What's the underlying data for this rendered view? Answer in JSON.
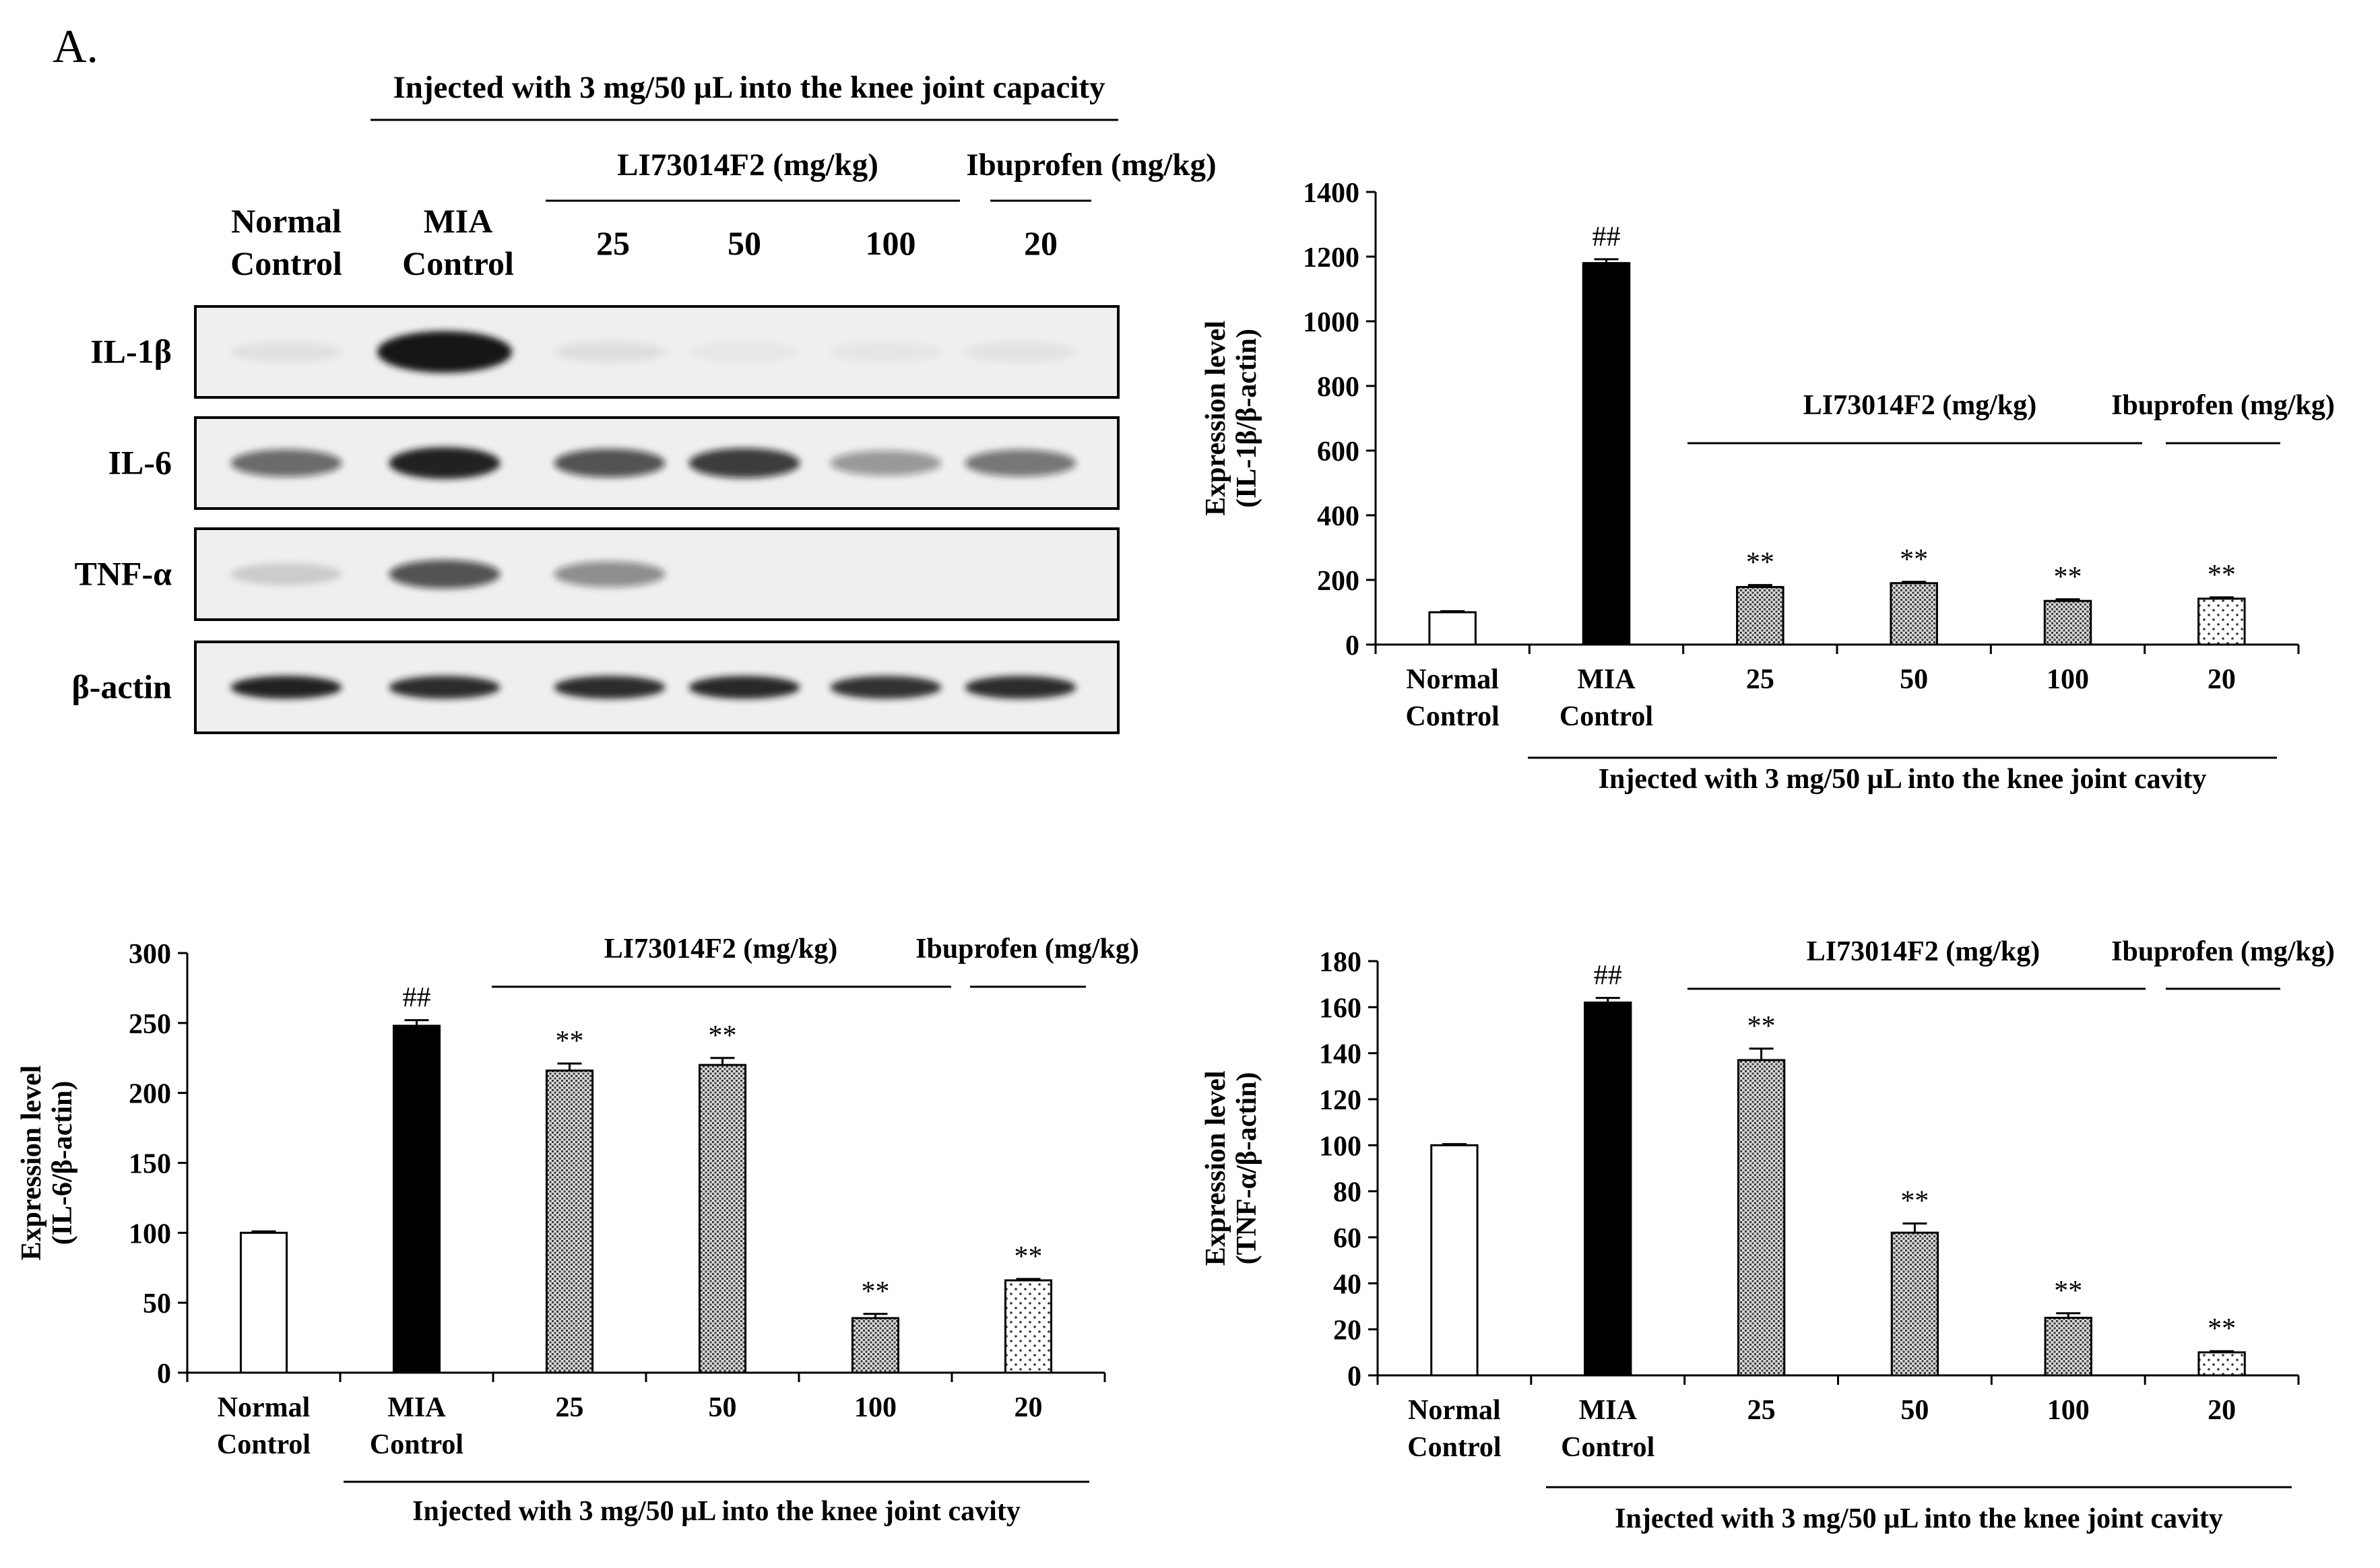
{
  "figure": {
    "panel_label": "A.",
    "treatment_groups": [
      "Normal Control",
      "MIA Control",
      "25",
      "50",
      "100",
      "20"
    ],
    "colors": {
      "normal": "#ffffff",
      "mia": "#000000",
      "li_pattern": "#8c8c8c",
      "ibu_pattern": "#ffffff",
      "blot_bg": "#efefef",
      "band": "#141414"
    }
  },
  "western_blot": {
    "header": "Injected with 3 mg/50 µL into the knee joint capacity",
    "li_label": "LI73014F2 (mg/kg)",
    "ibu_label": "Ibuprofen (mg/kg)",
    "lanes": [
      [
        "Normal",
        "Control"
      ],
      [
        "MIA",
        "Control"
      ],
      [
        "25"
      ],
      [
        "50"
      ],
      [
        "100"
      ],
      [
        "20"
      ]
    ],
    "rows": [
      {
        "label": "IL-1β",
        "intensities": [
          0.06,
          1.0,
          0.07,
          0.03,
          0.04,
          0.05
        ]
      },
      {
        "label": "IL-6",
        "intensities": [
          0.6,
          0.95,
          0.7,
          0.8,
          0.4,
          0.55
        ]
      },
      {
        "label": "TNF-α",
        "intensities": [
          0.15,
          0.7,
          0.45,
          0.0,
          0.0,
          0.0
        ]
      },
      {
        "label": "β-actin",
        "intensities": [
          0.95,
          0.9,
          0.9,
          0.92,
          0.88,
          0.9
        ]
      }
    ]
  },
  "chart_data": [
    {
      "type": "bar",
      "title": "",
      "ylabel": [
        "Expression level",
        "(IL-1β/β-actin)"
      ],
      "xlabel": "Injected with 3 mg/50 µL into the knee joint cavity",
      "ylim": [
        0,
        1400
      ],
      "yticks": [
        0,
        200,
        400,
        600,
        800,
        1000,
        1200,
        1400
      ],
      "categories": [
        [
          "Normal",
          "Control"
        ],
        [
          "MIA",
          "Control"
        ],
        [
          "25"
        ],
        [
          "50"
        ],
        [
          "100"
        ],
        [
          "20"
        ]
      ],
      "values": [
        100,
        1180,
        178,
        190,
        135,
        142
      ],
      "errors": [
        3,
        12,
        6,
        4,
        5,
        4
      ],
      "fills": [
        "white",
        "black",
        "dots",
        "dots",
        "dots",
        "sparse"
      ],
      "annotations": [
        "",
        "##",
        "**",
        "**",
        "**",
        "**"
      ],
      "group_labels": {
        "li": "LI73014F2 (mg/kg)",
        "ibu": "Ibuprofen (mg/kg)"
      }
    },
    {
      "type": "bar",
      "title": "",
      "ylabel": [
        "Expression level",
        "(IL-6/β-actin)"
      ],
      "xlabel": "Injected with 3 mg/50 µL into the knee joint cavity",
      "ylim": [
        0,
        300
      ],
      "yticks": [
        0,
        50,
        100,
        150,
        200,
        250,
        300
      ],
      "categories": [
        [
          "Normal",
          "Control"
        ],
        [
          "MIA",
          "Control"
        ],
        [
          "25"
        ],
        [
          "50"
        ],
        [
          "100"
        ],
        [
          "20"
        ]
      ],
      "values": [
        100,
        248,
        216,
        220,
        39,
        66
      ],
      "errors": [
        1,
        4,
        5,
        5,
        3,
        1
      ],
      "fills": [
        "white",
        "black",
        "dots",
        "dots",
        "dots",
        "sparse"
      ],
      "annotations": [
        "",
        "##",
        "**",
        "**",
        "**",
        "**"
      ],
      "group_labels": {
        "li": "LI73014F2 (mg/kg)",
        "ibu": "Ibuprofen (mg/kg)"
      }
    },
    {
      "type": "bar",
      "title": "",
      "ylabel": [
        "Expression level",
        "(TNF-α/β-actin)"
      ],
      "xlabel": "Injected with 3 mg/50 µL into the knee joint cavity",
      "ylim": [
        0,
        180
      ],
      "yticks": [
        0,
        20,
        40,
        60,
        80,
        100,
        120,
        140,
        160,
        180
      ],
      "categories": [
        [
          "Normal",
          "Control"
        ],
        [
          "MIA",
          "Control"
        ],
        [
          "25"
        ],
        [
          "50"
        ],
        [
          "100"
        ],
        [
          "20"
        ]
      ],
      "values": [
        100,
        162,
        137,
        62,
        25,
        10
      ],
      "errors": [
        0.5,
        2,
        5,
        4,
        2,
        0.5
      ],
      "fills": [
        "white",
        "black",
        "dots",
        "dots",
        "dots",
        "sparse"
      ],
      "annotations": [
        "",
        "##",
        "**",
        "**",
        "**",
        "**"
      ],
      "group_labels": {
        "li": "LI73014F2 (mg/kg)",
        "ibu": "Ibuprofen (mg/kg)"
      }
    }
  ]
}
